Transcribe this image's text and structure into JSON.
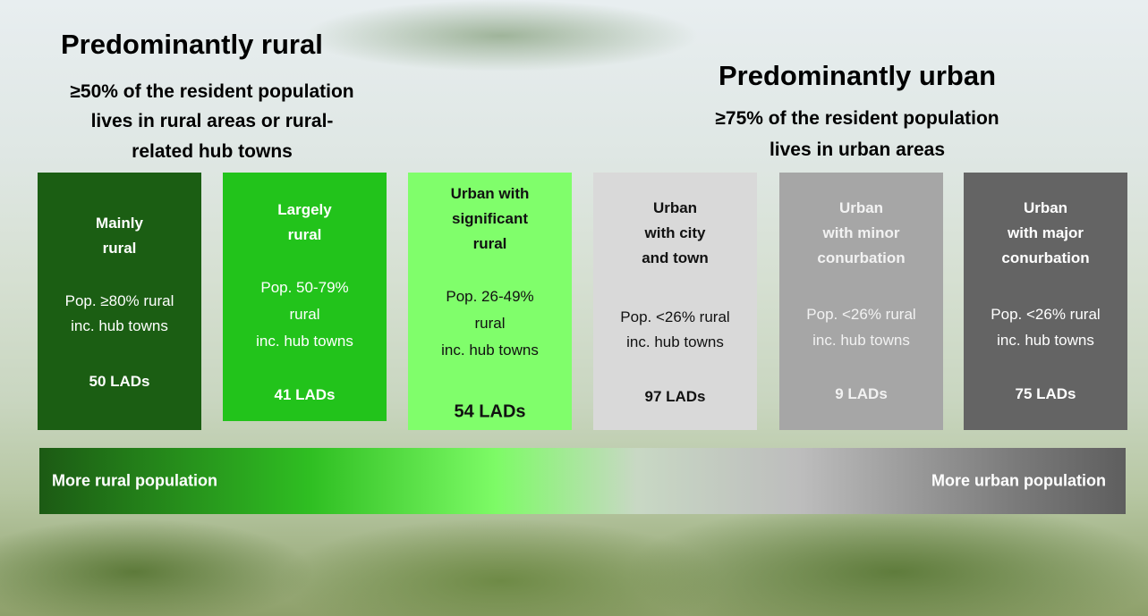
{
  "left": {
    "title": "Predominantly  rural",
    "lines": [
      "≥50% of the resident population",
      "lives in rural areas or rural-",
      "related hub towns"
    ]
  },
  "right": {
    "title": "Predominantly  urban",
    "lines": [
      "≥75% of the resident population",
      "lives in urban areas"
    ]
  },
  "boxes": [
    {
      "title": [
        "Mainly",
        "rural"
      ],
      "description": [
        "Pop. ≥80% rural",
        "inc. hub towns"
      ],
      "count": "50 LADs"
    },
    {
      "title": [
        "Largely",
        "rural"
      ],
      "description": [
        "Pop. 50-79%",
        "rural",
        "inc. hub towns"
      ],
      "count": "41 LADs"
    },
    {
      "title": [
        "Urban with",
        "significant",
        "rural"
      ],
      "description": [
        "Pop. 26-49%",
        "rural",
        "inc. hub towns"
      ],
      "count": "54 LADs"
    },
    {
      "title": [
        "Urban",
        "with city",
        "and town"
      ],
      "description": [
        "Pop. <26% rural",
        "inc. hub towns"
      ],
      "count": "97 LADs"
    },
    {
      "title": [
        "Urban",
        "with minor",
        "conurbation"
      ],
      "description": [
        "Pop. <26% rural",
        "inc. hub towns"
      ],
      "count": "9 LADs"
    },
    {
      "title": [
        "Urban",
        "with major",
        "conurbation"
      ],
      "description": [
        "Pop. <26% rural",
        "inc. hub towns"
      ],
      "count": "75 LADs"
    }
  ],
  "scale": {
    "left_label": "More rural population",
    "right_label": "More urban population"
  }
}
